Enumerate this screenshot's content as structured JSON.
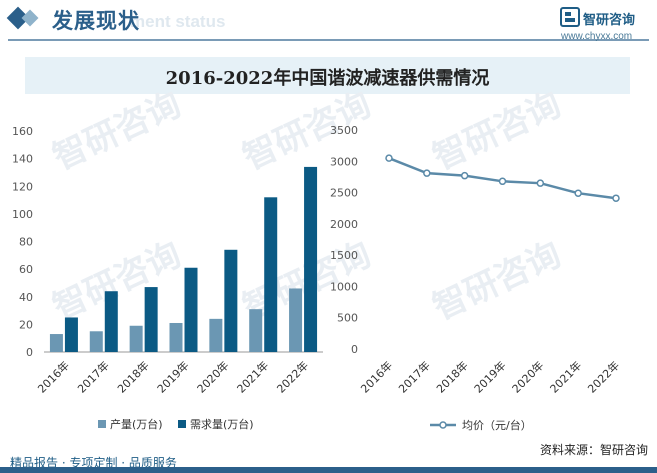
{
  "header": {
    "title": "发展现状",
    "subtitle_watermark": "ment status"
  },
  "brand": {
    "name": "智研咨询",
    "url": "www.chyxx.com"
  },
  "chart_title": "2016-2022年中国谐波减速器供需情况",
  "footer": {
    "left": "精品报告 · 专项定制 · 品质服务",
    "source": "资料来源：智研咨询"
  },
  "watermark": {
    "text": "智研咨询"
  },
  "colors": {
    "accent": "#2b5f8a",
    "production": "#6b97b3",
    "demand": "#0b5a84",
    "price_line": "#5b8aa8",
    "title_band": "#e6f1f7"
  },
  "chart_data": [
    {
      "type": "bar",
      "categories": [
        "2016年",
        "2017年",
        "2018年",
        "2019年",
        "2020年",
        "2021年",
        "2022年"
      ],
      "series": [
        {
          "name": "产量(万台)",
          "values": [
            13,
            15,
            19,
            21,
            24,
            31,
            46
          ]
        },
        {
          "name": "需求量(万台)",
          "values": [
            25,
            44,
            47,
            61,
            74,
            112,
            134
          ]
        }
      ],
      "ylim": [
        0,
        160
      ],
      "yticks": [
        0,
        20,
        40,
        60,
        80,
        100,
        120,
        140,
        160
      ],
      "legend": "bottom",
      "grid": false
    },
    {
      "type": "line",
      "categories": [
        "2016年",
        "2017年",
        "2018年",
        "2019年",
        "2020年",
        "2021年",
        "2022年"
      ],
      "series": [
        {
          "name": "均价（元/台）",
          "values": [
            3050,
            2810,
            2770,
            2680,
            2650,
            2490,
            2410
          ]
        }
      ],
      "ylim": [
        0,
        3500
      ],
      "yticks": [
        0,
        500,
        1000,
        1500,
        2000,
        2500,
        3000,
        3500
      ],
      "legend": "bottom",
      "grid": false
    }
  ]
}
